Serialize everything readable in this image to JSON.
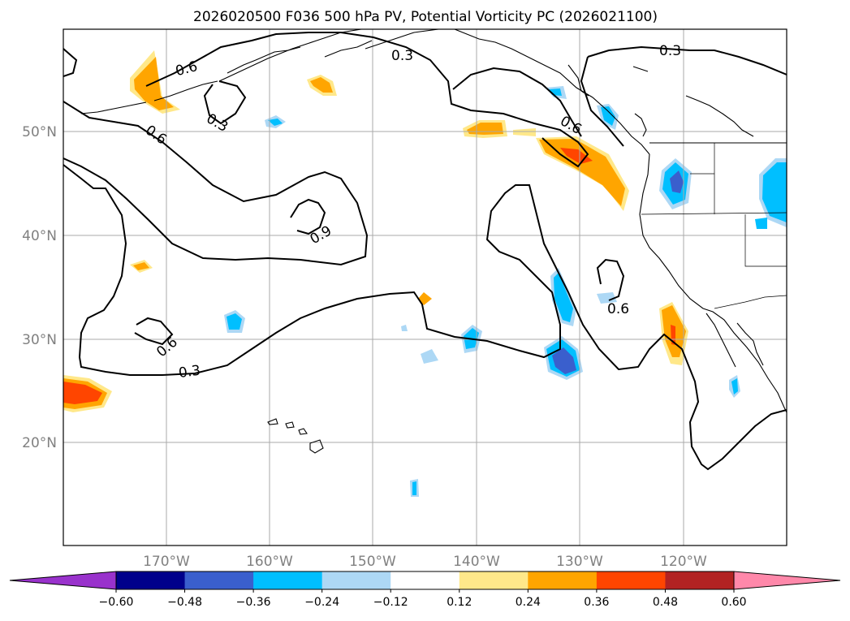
{
  "title": "2026020500 F036 500 hPa PV, Potential Vorticity PC (2026021100)",
  "lat_labels": [
    "50°N",
    "40°N",
    "30°N",
    "20°N"
  ],
  "lon_labels": [
    "170°W",
    "160°W",
    "150°W",
    "140°W",
    "130°W",
    "120°W"
  ],
  "colorbar": {
    "labels": [
      "−0.60",
      "−0.48",
      "−0.36",
      "−0.24",
      "−0.12",
      "0.12",
      "0.24",
      "0.36",
      "0.48",
      "0.60"
    ],
    "colors": [
      "#9932cc",
      "#00008b",
      "#3a5fcd",
      "#00bfff",
      "#add8f5",
      "#ffffff",
      "#ffe88a",
      "#ffa500",
      "#ff4500",
      "#b22222",
      "#ff88aa"
    ]
  },
  "contour_labels": {
    "c1": "0.6",
    "c2": "0.3",
    "c3": "0.3",
    "c4": "0.3",
    "c5": "0.6",
    "c6": "0.6",
    "c7": "0.9",
    "c8": "0.6",
    "c9": "0.3",
    "c10": "0.6"
  },
  "colors": {
    "coast": "#000000",
    "grid": "#aaaaaa",
    "frame": "#000000"
  }
}
